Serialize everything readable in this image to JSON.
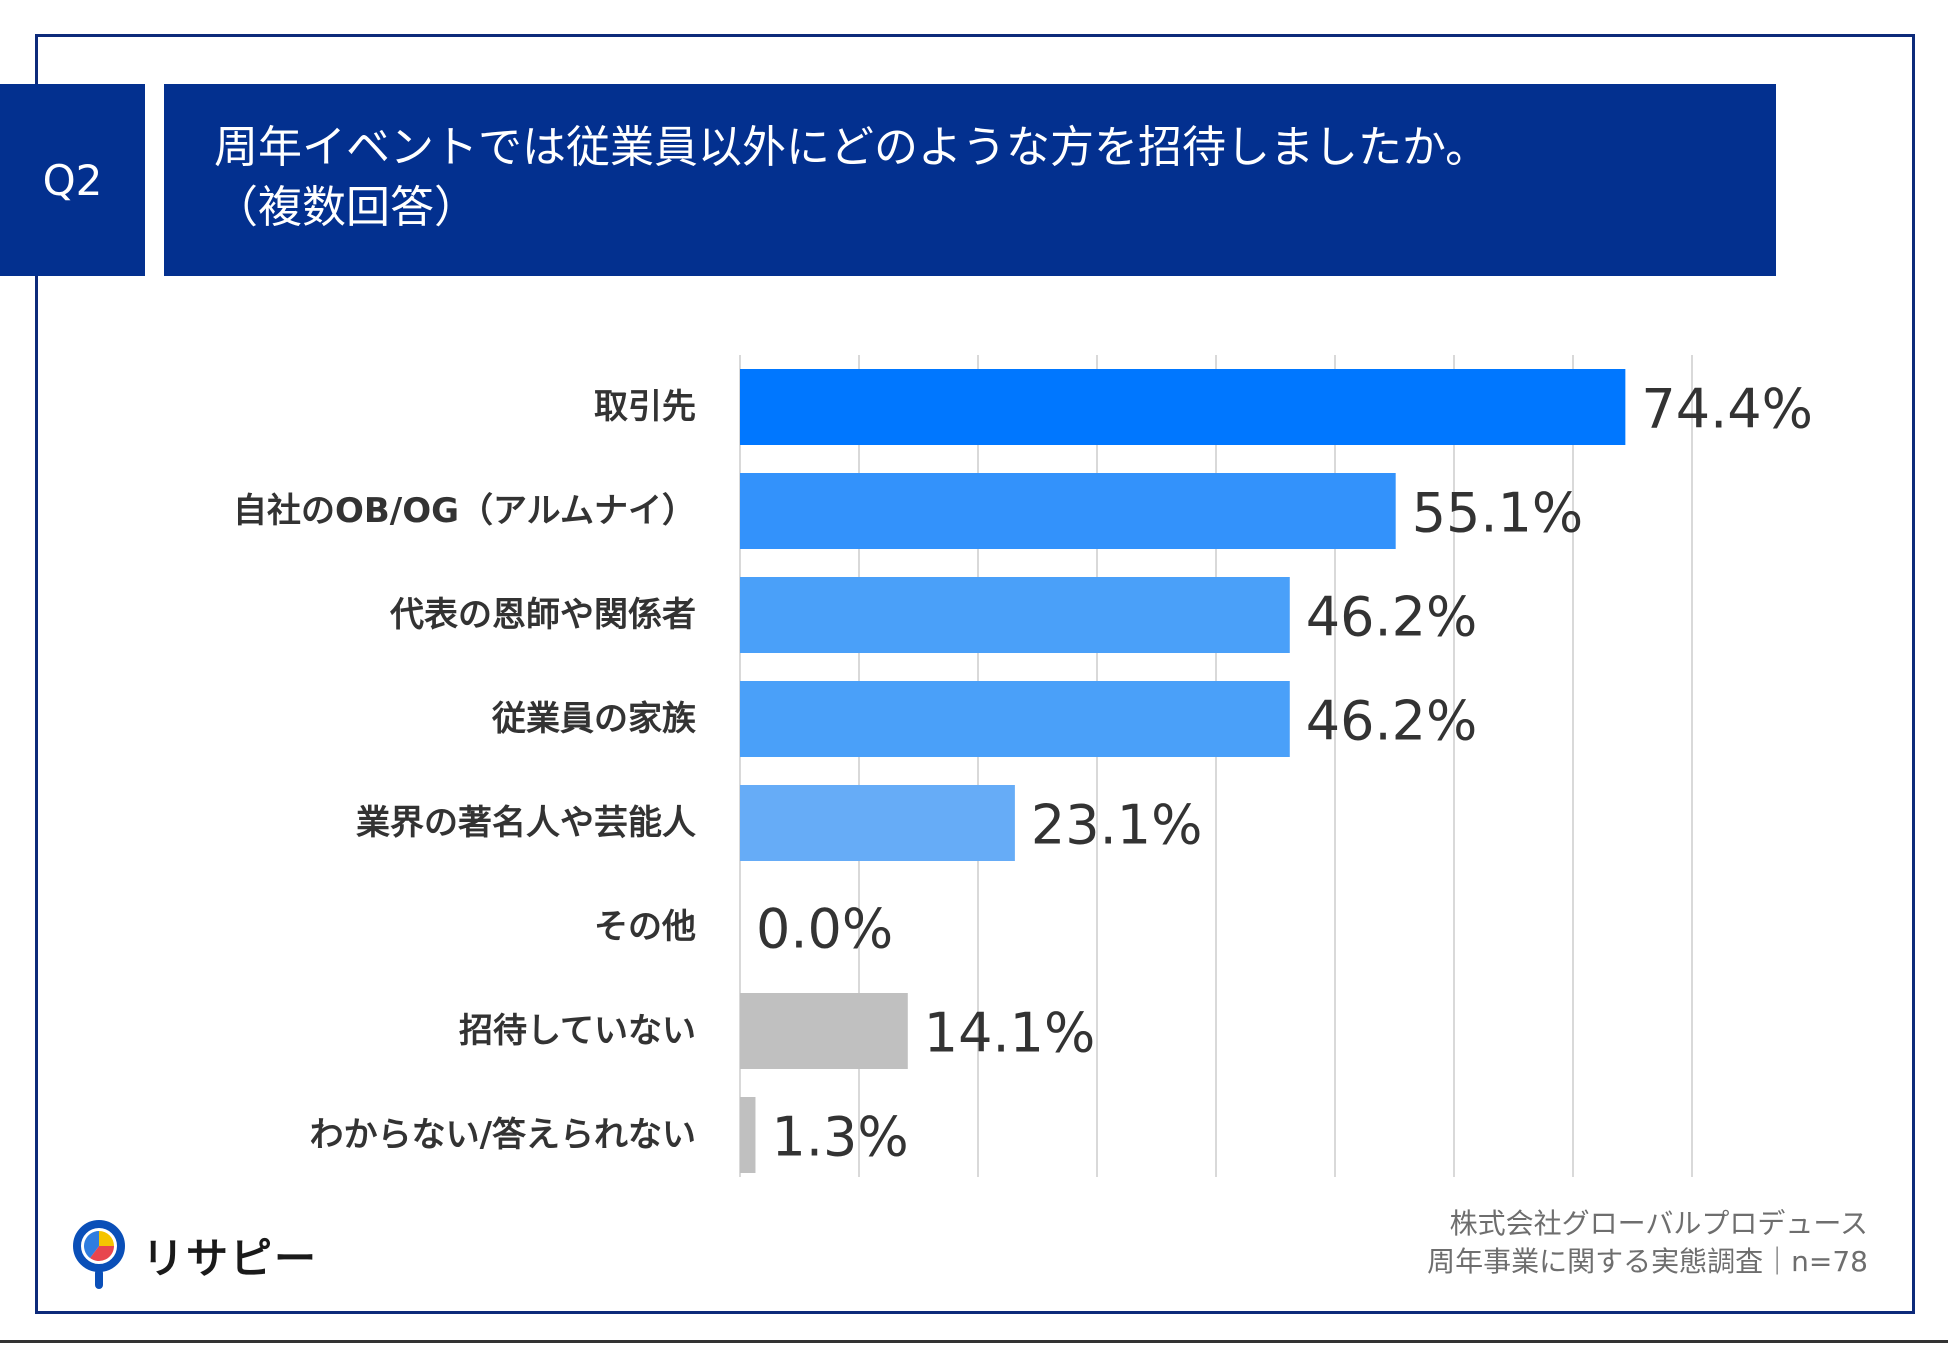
{
  "header": {
    "q_label": "Q2",
    "title_line1": "周年イベントでは従業員以外にどのような方を招待しましたか。",
    "title_line2": "（複数回答）"
  },
  "brand": {
    "name": "リサピー"
  },
  "source": {
    "line1": "株式会社グローバルプロデュース",
    "line2": "周年事業に関する実態調査｜n=78"
  },
  "colors": {
    "header_bg": "#03308f",
    "frame": "#0d2a7a",
    "bar_top": "#0077ff",
    "bar_2": "#3392fb",
    "bar_3": "#4aa0f9",
    "bar_4": "#66acf7",
    "bar_gray": "#c0c0c0",
    "grid": "#d9d9d9",
    "label_text": "#333333"
  },
  "chart_data": {
    "type": "bar",
    "orientation": "horizontal",
    "title": "周年イベントでは従業員以外にどのような方を招待しましたか。（複数回答）",
    "categories": [
      "取引先",
      "自社のOB/OG（アルムナイ）",
      "代表の恩師や関係者",
      "従業員の家族",
      "業界の著名人や芸能人",
      "その他",
      "招待していない",
      "わからない/答えられない"
    ],
    "values": [
      74.4,
      55.1,
      46.2,
      46.2,
      23.1,
      0.0,
      14.1,
      1.3
    ],
    "value_labels": [
      "74.4%",
      "55.1%",
      "46.2%",
      "46.2%",
      "23.1%",
      "0.0%",
      "14.1%",
      "1.3%"
    ],
    "bar_colors": [
      "bar_top",
      "bar_2",
      "bar_3",
      "bar_3",
      "bar_4",
      "bar_4",
      "bar_gray",
      "bar_gray"
    ],
    "xlim": [
      0,
      80
    ],
    "gridlines": [
      0,
      10,
      20,
      30,
      40,
      50,
      60,
      70,
      80
    ],
    "grid": true,
    "unit": "%"
  }
}
